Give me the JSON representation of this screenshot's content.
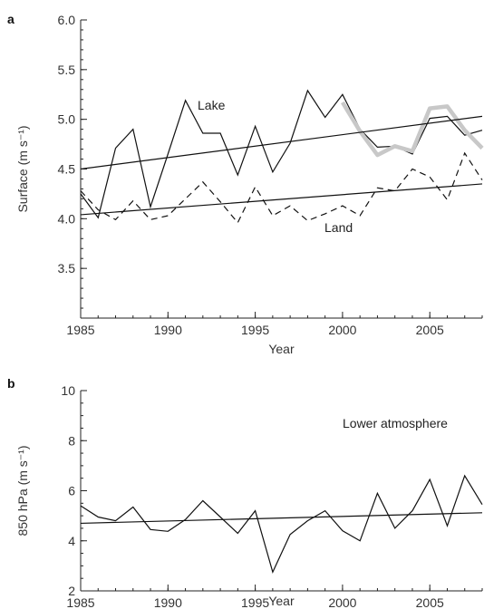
{
  "chart_data": [
    {
      "panel": "a",
      "type": "line",
      "xlabel": "Year",
      "ylabel": "Surface (m s⁻¹)",
      "xlim": [
        1985,
        2008
      ],
      "ylim": [
        3.0,
        6.0
      ],
      "xticks": [
        1985,
        1990,
        1995,
        2000,
        2005
      ],
      "yticks": [
        3.5,
        4.0,
        4.5,
        5.0,
        5.5,
        6.0
      ],
      "grid": false,
      "annotations": [
        "Lake",
        "Land"
      ],
      "series": [
        {
          "name": "Lake",
          "style": "solid",
          "color": "#111111",
          "x": [
            1985,
            1986,
            1987,
            1988,
            1989,
            1990,
            1991,
            1992,
            1993,
            1994,
            1995,
            1996,
            1997,
            1998,
            1999,
            2000,
            2001,
            2002,
            2003,
            2004,
            2005,
            2006,
            2007,
            2008
          ],
          "y": [
            4.25,
            4.01,
            4.71,
            4.9,
            4.12,
            4.65,
            5.19,
            4.86,
            4.86,
            4.44,
            4.93,
            4.47,
            4.76,
            5.29,
            5.02,
            5.25,
            4.9,
            4.72,
            4.73,
            4.65,
            5.01,
            5.03,
            4.84,
            4.89
          ]
        },
        {
          "name": "Land",
          "style": "dashed",
          "color": "#111111",
          "x": [
            1985,
            1986,
            1987,
            1988,
            1989,
            1990,
            1991,
            1992,
            1993,
            1994,
            1995,
            1996,
            1997,
            1998,
            1999,
            2000,
            2001,
            2002,
            2003,
            2004,
            2005,
            2006,
            2007,
            2008
          ],
          "y": [
            4.28,
            4.09,
            3.99,
            4.18,
            3.99,
            4.03,
            4.2,
            4.37,
            4.17,
            3.96,
            4.32,
            4.03,
            4.13,
            3.98,
            4.05,
            4.13,
            4.03,
            4.31,
            4.28,
            4.5,
            4.42,
            4.19,
            4.66,
            4.39
          ]
        },
        {
          "style": "thick",
          "color": "#c8c8c8",
          "x": [
            2000,
            2001,
            2002,
            2003,
            2004,
            2005,
            2006,
            2007,
            2008
          ],
          "y": [
            5.17,
            4.88,
            4.64,
            4.73,
            4.68,
            5.11,
            5.13,
            4.89,
            4.71
          ]
        }
      ],
      "trendlines": [
        {
          "x": [
            1985,
            2008
          ],
          "y": [
            4.5,
            5.03
          ]
        },
        {
          "x": [
            1985,
            2008
          ],
          "y": [
            4.04,
            4.35
          ]
        }
      ]
    },
    {
      "panel": "b",
      "type": "line",
      "xlabel": "Year",
      "ylabel": "850 hPa (m s⁻¹)",
      "xlim": [
        1985,
        2008
      ],
      "ylim": [
        2,
        10
      ],
      "xticks": [
        1985,
        1990,
        1995,
        2000,
        2005
      ],
      "yticks": [
        2,
        4,
        6,
        8,
        10
      ],
      "grid": false,
      "annotations": [
        "Lower atmosphere"
      ],
      "series": [
        {
          "style": "solid",
          "color": "#111111",
          "x": [
            1985,
            1986,
            1987,
            1988,
            1989,
            1990,
            1991,
            1992,
            1993,
            1994,
            1995,
            1996,
            1997,
            1998,
            1999,
            2000,
            2001,
            2002,
            2003,
            2004,
            2005,
            2006,
            2007,
            2008
          ],
          "y": [
            5.4,
            4.95,
            4.8,
            5.35,
            4.45,
            4.38,
            4.85,
            5.6,
            4.95,
            4.3,
            5.2,
            2.75,
            4.25,
            4.8,
            5.2,
            4.4,
            4.0,
            5.9,
            4.5,
            5.2,
            6.45,
            4.6,
            6.6,
            5.45
          ]
        }
      ],
      "trendlines": [
        {
          "x": [
            1985,
            2008
          ],
          "y": [
            4.7,
            5.12
          ]
        }
      ]
    }
  ]
}
